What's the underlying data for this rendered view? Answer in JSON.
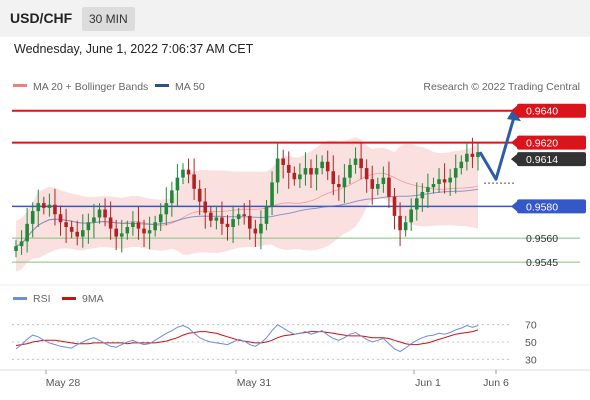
{
  "header": {
    "symbol": "USD/CHF",
    "timeframe": "30 MIN"
  },
  "datetime": "Wednesday, June 1, 2022 7:06:37 AM CET",
  "watermark": "Research © 2022 Trading Central",
  "legend": {
    "bb": "MA 20 + Bollinger Bands",
    "ma50": "MA 50",
    "rsi": "RSI",
    "ma9": "9MA"
  },
  "colors": {
    "up": "#1e8a3a",
    "down": "#b22222",
    "resistance": "#d9141b",
    "ma50": "#3558c9",
    "support": "#7cc47a",
    "arrow": "#2a5ca8",
    "band": "#f8c7c7"
  },
  "chart_data": {
    "type": "candlestick",
    "xlabels": [
      "May 28",
      "May 31",
      "Jun 1",
      "Jun 6"
    ],
    "ylim": [
      0.9535,
      0.9648
    ],
    "price_levels": [
      {
        "label": "0.9640",
        "value": 0.964,
        "kind": "resistance"
      },
      {
        "label": "0.9620",
        "value": 0.962,
        "kind": "resistance"
      },
      {
        "label": "0.9614",
        "value": 0.9614,
        "kind": "last"
      },
      {
        "label": "0.9580",
        "value": 0.958,
        "kind": "pivot"
      },
      {
        "label": "0.9560",
        "value": 0.956,
        "kind": "support"
      },
      {
        "label": "0.9545",
        "value": 0.9545,
        "kind": "support"
      }
    ],
    "forecast_path": [
      0.9614,
      0.9597,
      0.9636
    ],
    "closes": [
      0.9555,
      0.9558,
      0.9569,
      0.9577,
      0.9582,
      0.9579,
      0.9581,
      0.9575,
      0.957,
      0.9567,
      0.9564,
      0.9561,
      0.9565,
      0.957,
      0.9573,
      0.9578,
      0.9573,
      0.9566,
      0.9561,
      0.9563,
      0.9567,
      0.957,
      0.9566,
      0.9563,
      0.9565,
      0.957,
      0.9575,
      0.9582,
      0.959,
      0.9598,
      0.9603,
      0.96,
      0.9591,
      0.9583,
      0.9576,
      0.9571,
      0.9573,
      0.9569,
      0.9567,
      0.9572,
      0.9575,
      0.9574,
      0.9566,
      0.9563,
      0.9569,
      0.958,
      0.9595,
      0.961,
      0.9606,
      0.9601,
      0.9597,
      0.96,
      0.9604,
      0.96,
      0.9604,
      0.9608,
      0.9602,
      0.9594,
      0.9592,
      0.9598,
      0.9606,
      0.961,
      0.9604,
      0.9597,
      0.9591,
      0.9594,
      0.9598,
      0.9586,
      0.9574,
      0.9565,
      0.957,
      0.9578,
      0.9585,
      0.9589,
      0.9592,
      0.9594,
      0.9597,
      0.9595,
      0.9598,
      0.9604,
      0.9608,
      0.9613,
      0.9611,
      0.9614
    ],
    "rsi": {
      "ticks": [
        70,
        50,
        30
      ],
      "ylim": [
        20,
        80
      ],
      "rsi_values": [
        42,
        47,
        53,
        58,
        56,
        52,
        49,
        47,
        45,
        44,
        43,
        47,
        50,
        53,
        55,
        52,
        48,
        45,
        44,
        47,
        50,
        52,
        49,
        47,
        48,
        52,
        56,
        60,
        63,
        67,
        69,
        66,
        60,
        55,
        52,
        50,
        49,
        48,
        47,
        50,
        53,
        51,
        47,
        45,
        49,
        55,
        63,
        70,
        66,
        62,
        59,
        60,
        62,
        59,
        61,
        63,
        58,
        54,
        52,
        55,
        59,
        61,
        57,
        53,
        50,
        52,
        54,
        48,
        42,
        39,
        43,
        48,
        52,
        55,
        57,
        58,
        60,
        59,
        61,
        64,
        66,
        69,
        67,
        69
      ],
      "ma9_values": [
        46,
        47,
        48,
        50,
        51,
        52,
        52,
        52,
        51,
        50,
        49,
        48,
        48,
        48,
        49,
        49,
        49,
        49,
        49,
        49,
        48,
        49,
        49,
        49,
        49,
        49,
        50,
        51,
        53,
        55,
        58,
        60,
        61,
        62,
        62,
        61,
        60,
        58,
        56,
        54,
        52,
        51,
        50,
        49,
        49,
        50,
        52,
        55,
        57,
        58,
        59,
        60,
        61,
        62,
        62,
        62,
        61,
        60,
        59,
        58,
        57,
        57,
        57,
        56,
        55,
        55,
        55,
        54,
        52,
        50,
        48,
        47,
        47,
        48,
        49,
        51,
        53,
        55,
        57,
        59,
        60,
        61,
        62,
        64
      ]
    }
  }
}
